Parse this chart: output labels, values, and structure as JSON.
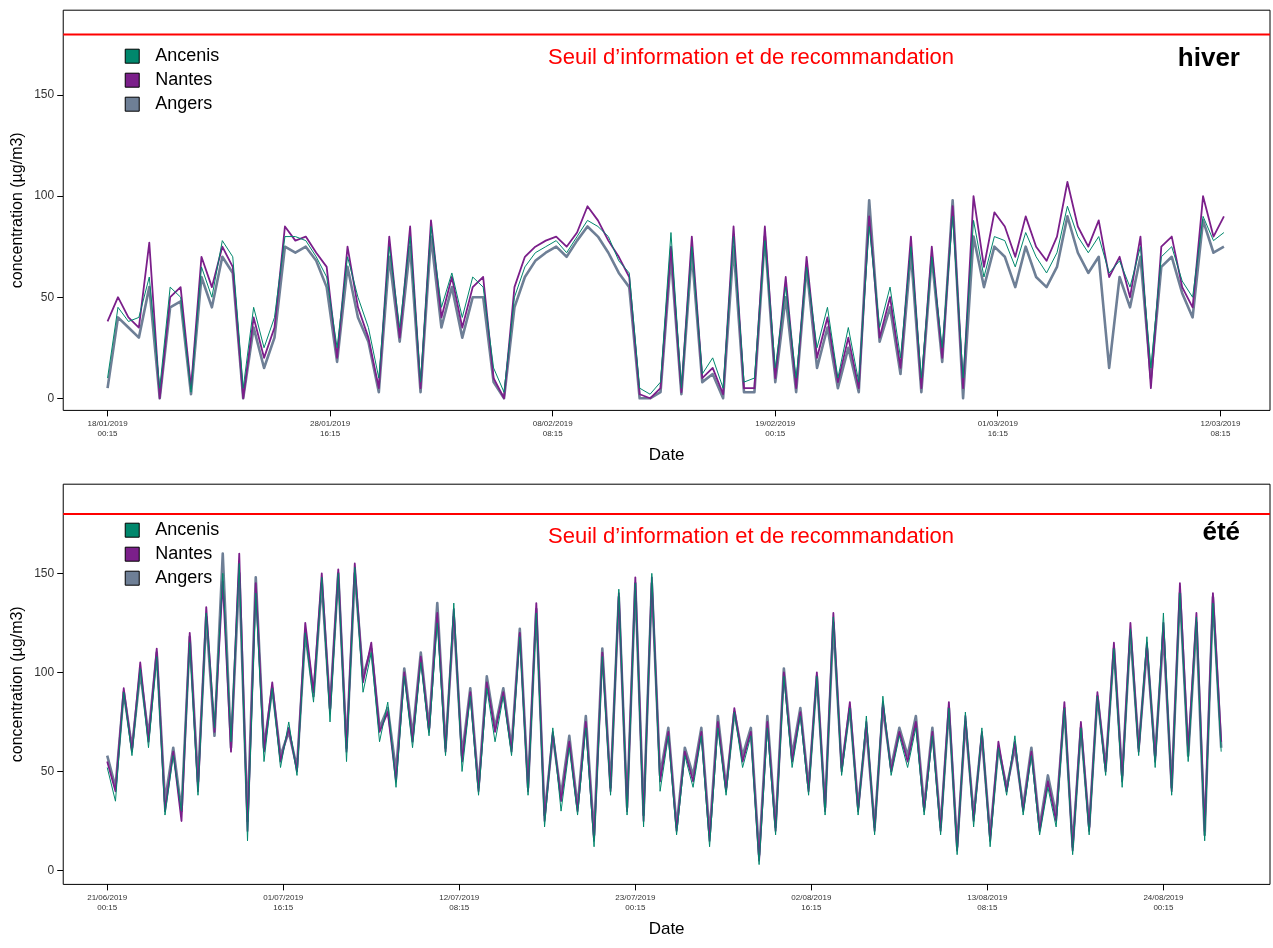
{
  "chart_data": [
    {
      "type": "line",
      "xlabel": "Date",
      "ylabel": "concentration (µg/m3)",
      "annotations": [
        "hiver"
      ],
      "legend": "top left",
      "grid": false,
      "xlim": [
        "2019-01-15T21:15",
        "2019-03-14T17:15"
      ],
      "ylim": [
        -6,
        192
      ],
      "yticks": [
        0,
        50,
        100,
        150
      ],
      "xticks": [
        {
          "value": "2019-01-18T00:15",
          "label": "18/01/2019\n00:15"
        },
        {
          "value": "2019-01-28T16:15",
          "label": "28/01/2019\n16:15"
        },
        {
          "value": "2019-02-08T08:15",
          "label": "08/02/2019\n08:15"
        },
        {
          "value": "2019-02-19T00:15",
          "label": "19/02/2019\n00:15"
        },
        {
          "value": "2019-03-01T16:15",
          "label": "01/03/2019\n16:15"
        },
        {
          "value": "2019-03-12T08:15",
          "label": "12/03/2019\n08:15"
        }
      ],
      "ref_lines": [
        {
          "axis": "y",
          "value": 180,
          "label": "Seuil d’information et de recommandation",
          "color": "#ff0000"
        }
      ],
      "x": [
        "2019-01-18T00:15",
        "2019-01-18T12:15",
        "2019-01-19T00:15",
        "2019-01-19T12:15",
        "2019-01-20T00:15",
        "2019-01-20T12:15",
        "2019-01-21T00:15",
        "2019-01-21T12:15",
        "2019-01-22T00:15",
        "2019-01-22T12:15",
        "2019-01-23T00:15",
        "2019-01-23T12:15",
        "2019-01-24T00:15",
        "2019-01-24T12:15",
        "2019-01-25T00:15",
        "2019-01-25T12:15",
        "2019-01-26T00:15",
        "2019-01-26T12:15",
        "2019-01-27T00:15",
        "2019-01-27T12:15",
        "2019-01-28T00:15",
        "2019-01-28T12:15",
        "2019-01-29T00:15",
        "2019-01-29T12:15",
        "2019-01-30T00:15",
        "2019-01-30T12:15",
        "2019-01-31T00:15",
        "2019-01-31T12:15",
        "2019-02-01T00:15",
        "2019-02-01T12:15",
        "2019-02-02T00:15",
        "2019-02-02T12:15",
        "2019-02-03T00:15",
        "2019-02-03T12:15",
        "2019-02-04T00:15",
        "2019-02-04T12:15",
        "2019-02-05T00:15",
        "2019-02-05T12:15",
        "2019-02-06T00:15",
        "2019-02-06T12:15",
        "2019-02-07T00:15",
        "2019-02-07T12:15",
        "2019-02-08T00:15",
        "2019-02-08T12:15",
        "2019-02-09T00:15",
        "2019-02-09T12:15",
        "2019-02-10T00:15",
        "2019-02-10T12:15",
        "2019-02-11T00:15",
        "2019-02-11T12:15",
        "2019-02-12T00:15",
        "2019-02-12T12:15",
        "2019-02-13T00:15",
        "2019-02-13T12:15",
        "2019-02-14T00:15",
        "2019-02-14T12:15",
        "2019-02-15T00:15",
        "2019-02-15T12:15",
        "2019-02-16T00:15",
        "2019-02-16T12:15",
        "2019-02-17T00:15",
        "2019-02-17T12:15",
        "2019-02-18T00:15",
        "2019-02-18T12:15",
        "2019-02-19T00:15",
        "2019-02-19T12:15",
        "2019-02-20T00:15",
        "2019-02-20T12:15",
        "2019-02-21T00:15",
        "2019-02-21T12:15",
        "2019-02-22T00:15",
        "2019-02-22T12:15",
        "2019-02-23T00:15",
        "2019-02-23T12:15",
        "2019-02-24T00:15",
        "2019-02-24T12:15",
        "2019-02-25T00:15",
        "2019-02-25T12:15",
        "2019-02-26T00:15",
        "2019-02-26T12:15",
        "2019-02-27T00:15",
        "2019-02-27T12:15",
        "2019-02-28T00:15",
        "2019-02-28T12:15",
        "2019-03-01T00:15",
        "2019-03-01T12:15",
        "2019-03-02T00:15",
        "2019-03-02T12:15",
        "2019-03-03T00:15",
        "2019-03-03T12:15",
        "2019-03-04T00:15",
        "2019-03-04T12:15",
        "2019-03-05T00:15",
        "2019-03-05T12:15",
        "2019-03-06T00:15",
        "2019-03-06T12:15",
        "2019-03-07T00:15",
        "2019-03-07T12:15",
        "2019-03-08T00:15",
        "2019-03-08T12:15",
        "2019-03-09T00:15",
        "2019-03-09T12:15",
        "2019-03-10T00:15",
        "2019-03-10T12:15",
        "2019-03-11T00:15",
        "2019-03-11T12:15",
        "2019-03-12T00:15",
        "2019-03-12T12:15"
      ],
      "series": [
        {
          "name": "Ancenis",
          "color": "#00876c",
          "values": [
            10,
            45,
            38,
            40,
            60,
            5,
            55,
            50,
            3,
            65,
            50,
            78,
            70,
            5,
            45,
            25,
            40,
            80,
            80,
            78,
            70,
            60,
            25,
            70,
            50,
            35,
            10,
            75,
            35,
            80,
            8,
            85,
            45,
            62,
            40,
            60,
            55,
            15,
            3,
            50,
            65,
            72,
            75,
            78,
            72,
            80,
            88,
            85,
            80,
            68,
            62,
            5,
            2,
            8,
            82,
            5,
            75,
            12,
            20,
            5,
            80,
            8,
            10,
            78,
            15,
            55,
            10,
            65,
            25,
            45,
            10,
            35,
            8,
            85,
            35,
            55,
            20,
            75,
            10,
            70,
            25,
            90,
            10,
            88,
            60,
            80,
            78,
            65,
            82,
            70,
            62,
            72,
            95,
            80,
            72,
            80,
            62,
            68,
            55,
            75,
            15,
            70,
            75,
            58,
            50,
            90,
            78,
            82
          ]
        },
        {
          "name": "Nantes",
          "color": "#7b1f8a",
          "values": [
            38,
            50,
            40,
            35,
            77,
            0,
            50,
            55,
            5,
            70,
            55,
            75,
            65,
            0,
            40,
            20,
            35,
            85,
            78,
            80,
            72,
            65,
            20,
            75,
            45,
            30,
            5,
            80,
            30,
            85,
            5,
            88,
            40,
            60,
            35,
            55,
            60,
            10,
            0,
            55,
            70,
            75,
            78,
            80,
            75,
            82,
            95,
            88,
            78,
            70,
            60,
            2,
            0,
            5,
            75,
            3,
            80,
            10,
            15,
            2,
            85,
            5,
            5,
            85,
            10,
            60,
            5,
            70,
            20,
            40,
            8,
            30,
            5,
            90,
            30,
            50,
            15,
            80,
            5,
            75,
            20,
            95,
            5,
            100,
            65,
            92,
            85,
            70,
            90,
            75,
            68,
            80,
            107,
            85,
            75,
            88,
            60,
            70,
            50,
            80,
            5,
            75,
            80,
            55,
            45,
            100,
            80,
            90
          ]
        },
        {
          "name": "Angers",
          "color": "#6e7f96",
          "values": [
            5,
            40,
            35,
            30,
            55,
            0,
            45,
            48,
            2,
            60,
            45,
            70,
            62,
            0,
            35,
            15,
            30,
            75,
            72,
            75,
            68,
            55,
            18,
            65,
            40,
            28,
            3,
            70,
            28,
            75,
            3,
            80,
            35,
            55,
            30,
            50,
            50,
            8,
            0,
            45,
            60,
            68,
            72,
            75,
            70,
            78,
            85,
            80,
            72,
            62,
            55,
            0,
            0,
            3,
            70,
            2,
            72,
            8,
            12,
            0,
            75,
            3,
            3,
            80,
            8,
            50,
            3,
            65,
            15,
            35,
            5,
            25,
            3,
            98,
            28,
            45,
            12,
            72,
            3,
            70,
            18,
            98,
            0,
            80,
            55,
            75,
            70,
            55,
            75,
            60,
            55,
            65,
            90,
            72,
            62,
            70,
            15,
            60,
            45,
            70,
            10,
            65,
            70,
            52,
            40,
            88,
            72,
            75
          ]
        }
      ]
    },
    {
      "type": "line",
      "xlabel": "Date",
      "ylabel": "concentration (µg/m3)",
      "annotations": [
        "été"
      ],
      "legend": "top left",
      "grid": false,
      "xlim": [
        "2019-06-18T08:15",
        "2019-08-30T11:15"
      ],
      "ylim": [
        -7,
        195
      ],
      "yticks": [
        0,
        50,
        100,
        150
      ],
      "xticks": [
        {
          "value": "2019-06-21T00:15",
          "label": "21/06/2019\n00:15"
        },
        {
          "value": "2019-07-01T16:15",
          "label": "01/07/2019\n16:15"
        },
        {
          "value": "2019-07-12T08:15",
          "label": "12/07/2019\n08:15"
        },
        {
          "value": "2019-07-23T00:15",
          "label": "23/07/2019\n00:15"
        },
        {
          "value": "2019-08-02T16:15",
          "label": "02/08/2019\n16:15"
        },
        {
          "value": "2019-08-13T08:15",
          "label": "13/08/2019\n08:15"
        },
        {
          "value": "2019-08-24T00:15",
          "label": "24/08/2019\n00:15"
        }
      ],
      "ref_lines": [
        {
          "axis": "y",
          "value": 180,
          "label": "Seuil d’information et de recommandation",
          "color": "#ff0000"
        }
      ],
      "x": [
        "2019-06-21T00:15",
        "2019-06-21T12:15",
        "2019-06-22T00:15",
        "2019-06-22T12:15",
        "2019-06-23T00:15",
        "2019-06-23T12:15",
        "2019-06-24T00:15",
        "2019-06-24T12:15",
        "2019-06-25T00:15",
        "2019-06-25T12:15",
        "2019-06-26T00:15",
        "2019-06-26T12:15",
        "2019-06-27T00:15",
        "2019-06-27T12:15",
        "2019-06-28T00:15",
        "2019-06-28T12:15",
        "2019-06-29T00:15",
        "2019-06-29T12:15",
        "2019-06-30T00:15",
        "2019-06-30T12:15",
        "2019-07-01T00:15",
        "2019-07-01T12:15",
        "2019-07-02T00:15",
        "2019-07-02T12:15",
        "2019-07-03T00:15",
        "2019-07-03T12:15",
        "2019-07-04T00:15",
        "2019-07-04T12:15",
        "2019-07-05T00:15",
        "2019-07-05T12:15",
        "2019-07-06T00:15",
        "2019-07-06T12:15",
        "2019-07-07T00:15",
        "2019-07-07T12:15",
        "2019-07-08T00:15",
        "2019-07-08T12:15",
        "2019-07-09T00:15",
        "2019-07-09T12:15",
        "2019-07-10T00:15",
        "2019-07-10T12:15",
        "2019-07-11T00:15",
        "2019-07-11T12:15",
        "2019-07-12T00:15",
        "2019-07-12T12:15",
        "2019-07-13T00:15",
        "2019-07-13T12:15",
        "2019-07-14T00:15",
        "2019-07-14T12:15",
        "2019-07-15T00:15",
        "2019-07-15T12:15",
        "2019-07-16T00:15",
        "2019-07-16T12:15",
        "2019-07-17T00:15",
        "2019-07-17T12:15",
        "2019-07-18T00:15",
        "2019-07-18T12:15",
        "2019-07-19T00:15",
        "2019-07-19T12:15",
        "2019-07-20T00:15",
        "2019-07-20T12:15",
        "2019-07-21T00:15",
        "2019-07-21T12:15",
        "2019-07-22T00:15",
        "2019-07-22T12:15",
        "2019-07-23T00:15",
        "2019-07-23T12:15",
        "2019-07-24T00:15",
        "2019-07-24T12:15",
        "2019-07-25T00:15",
        "2019-07-25T12:15",
        "2019-07-26T00:15",
        "2019-07-26T12:15",
        "2019-07-27T00:15",
        "2019-07-27T12:15",
        "2019-07-28T00:15",
        "2019-07-28T12:15",
        "2019-07-29T00:15",
        "2019-07-29T12:15",
        "2019-07-30T00:15",
        "2019-07-30T12:15",
        "2019-07-31T00:15",
        "2019-07-31T12:15",
        "2019-08-01T00:15",
        "2019-08-01T12:15",
        "2019-08-02T00:15",
        "2019-08-02T12:15",
        "2019-08-03T00:15",
        "2019-08-03T12:15",
        "2019-08-04T00:15",
        "2019-08-04T12:15",
        "2019-08-05T00:15",
        "2019-08-05T12:15",
        "2019-08-06T00:15",
        "2019-08-06T12:15",
        "2019-08-07T00:15",
        "2019-08-07T12:15",
        "2019-08-08T00:15",
        "2019-08-08T12:15",
        "2019-08-09T00:15",
        "2019-08-09T12:15",
        "2019-08-10T00:15",
        "2019-08-10T12:15",
        "2019-08-11T00:15",
        "2019-08-11T12:15",
        "2019-08-12T00:15",
        "2019-08-12T12:15",
        "2019-08-13T00:15",
        "2019-08-13T12:15",
        "2019-08-14T00:15",
        "2019-08-14T12:15",
        "2019-08-15T00:15",
        "2019-08-15T12:15",
        "2019-08-16T00:15",
        "2019-08-16T12:15",
        "2019-08-17T00:15",
        "2019-08-17T12:15",
        "2019-08-18T00:15",
        "2019-08-18T12:15",
        "2019-08-19T00:15",
        "2019-08-19T12:15",
        "2019-08-20T00:15",
        "2019-08-20T12:15",
        "2019-08-21T00:15",
        "2019-08-21T12:15",
        "2019-08-22T00:15",
        "2019-08-22T12:15",
        "2019-08-23T00:15",
        "2019-08-23T12:15",
        "2019-08-24T00:15",
        "2019-08-24T12:15",
        "2019-08-25T00:15",
        "2019-08-25T12:15",
        "2019-08-26T00:15",
        "2019-08-26T12:15",
        "2019-08-27T00:15",
        "2019-08-27T12:15"
      ],
      "series": [
        {
          "name": "Ancenis",
          "color": "#00876c",
          "values": [
            52,
            35,
            90,
            58,
            102,
            62,
            108,
            28,
            58,
            30,
            115,
            38,
            130,
            72,
            150,
            65,
            155,
            15,
            140,
            55,
            92,
            52,
            75,
            48,
            120,
            85,
            148,
            75,
            150,
            55,
            153,
            90,
            110,
            65,
            85,
            42,
            98,
            62,
            105,
            68,
            125,
            58,
            135,
            50,
            88,
            38,
            92,
            65,
            88,
            58,
            118,
            38,
            130,
            22,
            72,
            30,
            62,
            28,
            72,
            12,
            108,
            38,
            142,
            28,
            145,
            22,
            150,
            40,
            68,
            18,
            58,
            42,
            68,
            12,
            72,
            38,
            80,
            52,
            68,
            3,
            72,
            18,
            98,
            52,
            78,
            38,
            98,
            28,
            128,
            48,
            82,
            28,
            78,
            18,
            88,
            48,
            68,
            52,
            72,
            28,
            68,
            18,
            82,
            8,
            80,
            22,
            72,
            12,
            62,
            38,
            68,
            28,
            58,
            18,
            42,
            22,
            82,
            8,
            72,
            18,
            88,
            48,
            112,
            42,
            122,
            58,
            118,
            52,
            130,
            38,
            140,
            55,
            128,
            15,
            135,
            60
          ]
        },
        {
          "name": "Nantes",
          "color": "#7b1f8a",
          "values": [
            55,
            40,
            92,
            60,
            105,
            65,
            112,
            30,
            60,
            25,
            120,
            40,
            133,
            70,
            146,
            60,
            160,
            20,
            145,
            60,
            95,
            55,
            72,
            50,
            125,
            90,
            150,
            80,
            152,
            60,
            155,
            95,
            115,
            70,
            80,
            45,
            100,
            65,
            108,
            70,
            130,
            60,
            132,
            55,
            90,
            40,
            95,
            70,
            90,
            60,
            120,
            40,
            135,
            25,
            70,
            35,
            65,
            30,
            75,
            15,
            110,
            40,
            140,
            30,
            148,
            25,
            148,
            45,
            70,
            20,
            60,
            45,
            70,
            15,
            75,
            40,
            82,
            55,
            70,
            5,
            75,
            20,
            100,
            55,
            80,
            40,
            100,
            30,
            130,
            50,
            85,
            30,
            75,
            20,
            85,
            50,
            70,
            55,
            75,
            30,
            70,
            20,
            85,
            10,
            78,
            25,
            70,
            15,
            65,
            40,
            65,
            30,
            60,
            20,
            45,
            25,
            85,
            10,
            75,
            20,
            90,
            50,
            115,
            45,
            125,
            60,
            115,
            55,
            125,
            40,
            145,
            60,
            130,
            20,
            140,
            65
          ]
        },
        {
          "name": "Angers",
          "color": "#6e7f96",
          "values": [
            58,
            42,
            90,
            62,
            100,
            68,
            110,
            35,
            62,
            30,
            118,
            45,
            128,
            68,
            160,
            62,
            150,
            25,
            148,
            62,
            92,
            58,
            70,
            52,
            120,
            88,
            145,
            82,
            150,
            62,
            150,
            98,
            112,
            72,
            82,
            50,
            102,
            68,
            110,
            72,
            135,
            62,
            128,
            58,
            92,
            42,
            98,
            72,
            92,
            62,
            122,
            42,
            132,
            28,
            68,
            38,
            68,
            32,
            78,
            18,
            112,
            42,
            138,
            32,
            145,
            28,
            145,
            48,
            72,
            22,
            62,
            48,
            72,
            18,
            78,
            42,
            80,
            58,
            72,
            8,
            78,
            22,
            102,
            58,
            82,
            42,
            98,
            32,
            125,
            52,
            82,
            32,
            72,
            22,
            82,
            52,
            72,
            58,
            78,
            32,
            72,
            22,
            82,
            12,
            75,
            28,
            68,
            18,
            62,
            42,
            62,
            32,
            62,
            22,
            48,
            28,
            82,
            12,
            72,
            22,
            88,
            52,
            112,
            48,
            120,
            62,
            112,
            58,
            120,
            42,
            140,
            58,
            125,
            18,
            138,
            62
          ]
        }
      ]
    }
  ]
}
